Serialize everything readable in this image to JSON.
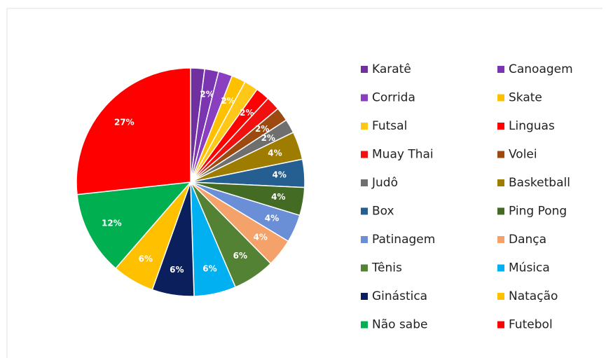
{
  "chart_data": {
    "type": "pie",
    "categories": [
      "Karatê",
      "Canoagem",
      "Corrida",
      "Skate",
      "Futsal",
      "Linguas",
      "Muay Thai",
      "Volei",
      "Judô",
      "Basketball",
      "Box",
      "Ping Pong",
      "Patinagem",
      "Dança",
      "Tênis",
      "Música",
      "Ginástica",
      "Natação",
      "Não sabe",
      "Futebol"
    ],
    "values": [
      2,
      2,
      2,
      2,
      2,
      2,
      2,
      2,
      2,
      4,
      4,
      4,
      4,
      4,
      6,
      6,
      6,
      6,
      12,
      27
    ],
    "value_labels": [
      null,
      "2%",
      null,
      "2%",
      null,
      "2%",
      null,
      "2%",
      "2%",
      "4%",
      "4%",
      "4%",
      "4%",
      "4%",
      "6%",
      "6%",
      "6%",
      "6%",
      "12%",
      "27%"
    ],
    "colors": [
      "#7030a0",
      "#7b35b0",
      "#8a3fc0",
      "#ffc000",
      "#ffc718",
      "#ff0000",
      "#f01010",
      "#9c4a10",
      "#6f6f6f",
      "#9e7c00",
      "#255e91",
      "#436b24",
      "#6b8fd6",
      "#f4a26a",
      "#548235",
      "#00b0f0",
      "#0b1f5c",
      "#ffc000",
      "#00b050",
      "#ff0000"
    ],
    "legend": "right"
  }
}
